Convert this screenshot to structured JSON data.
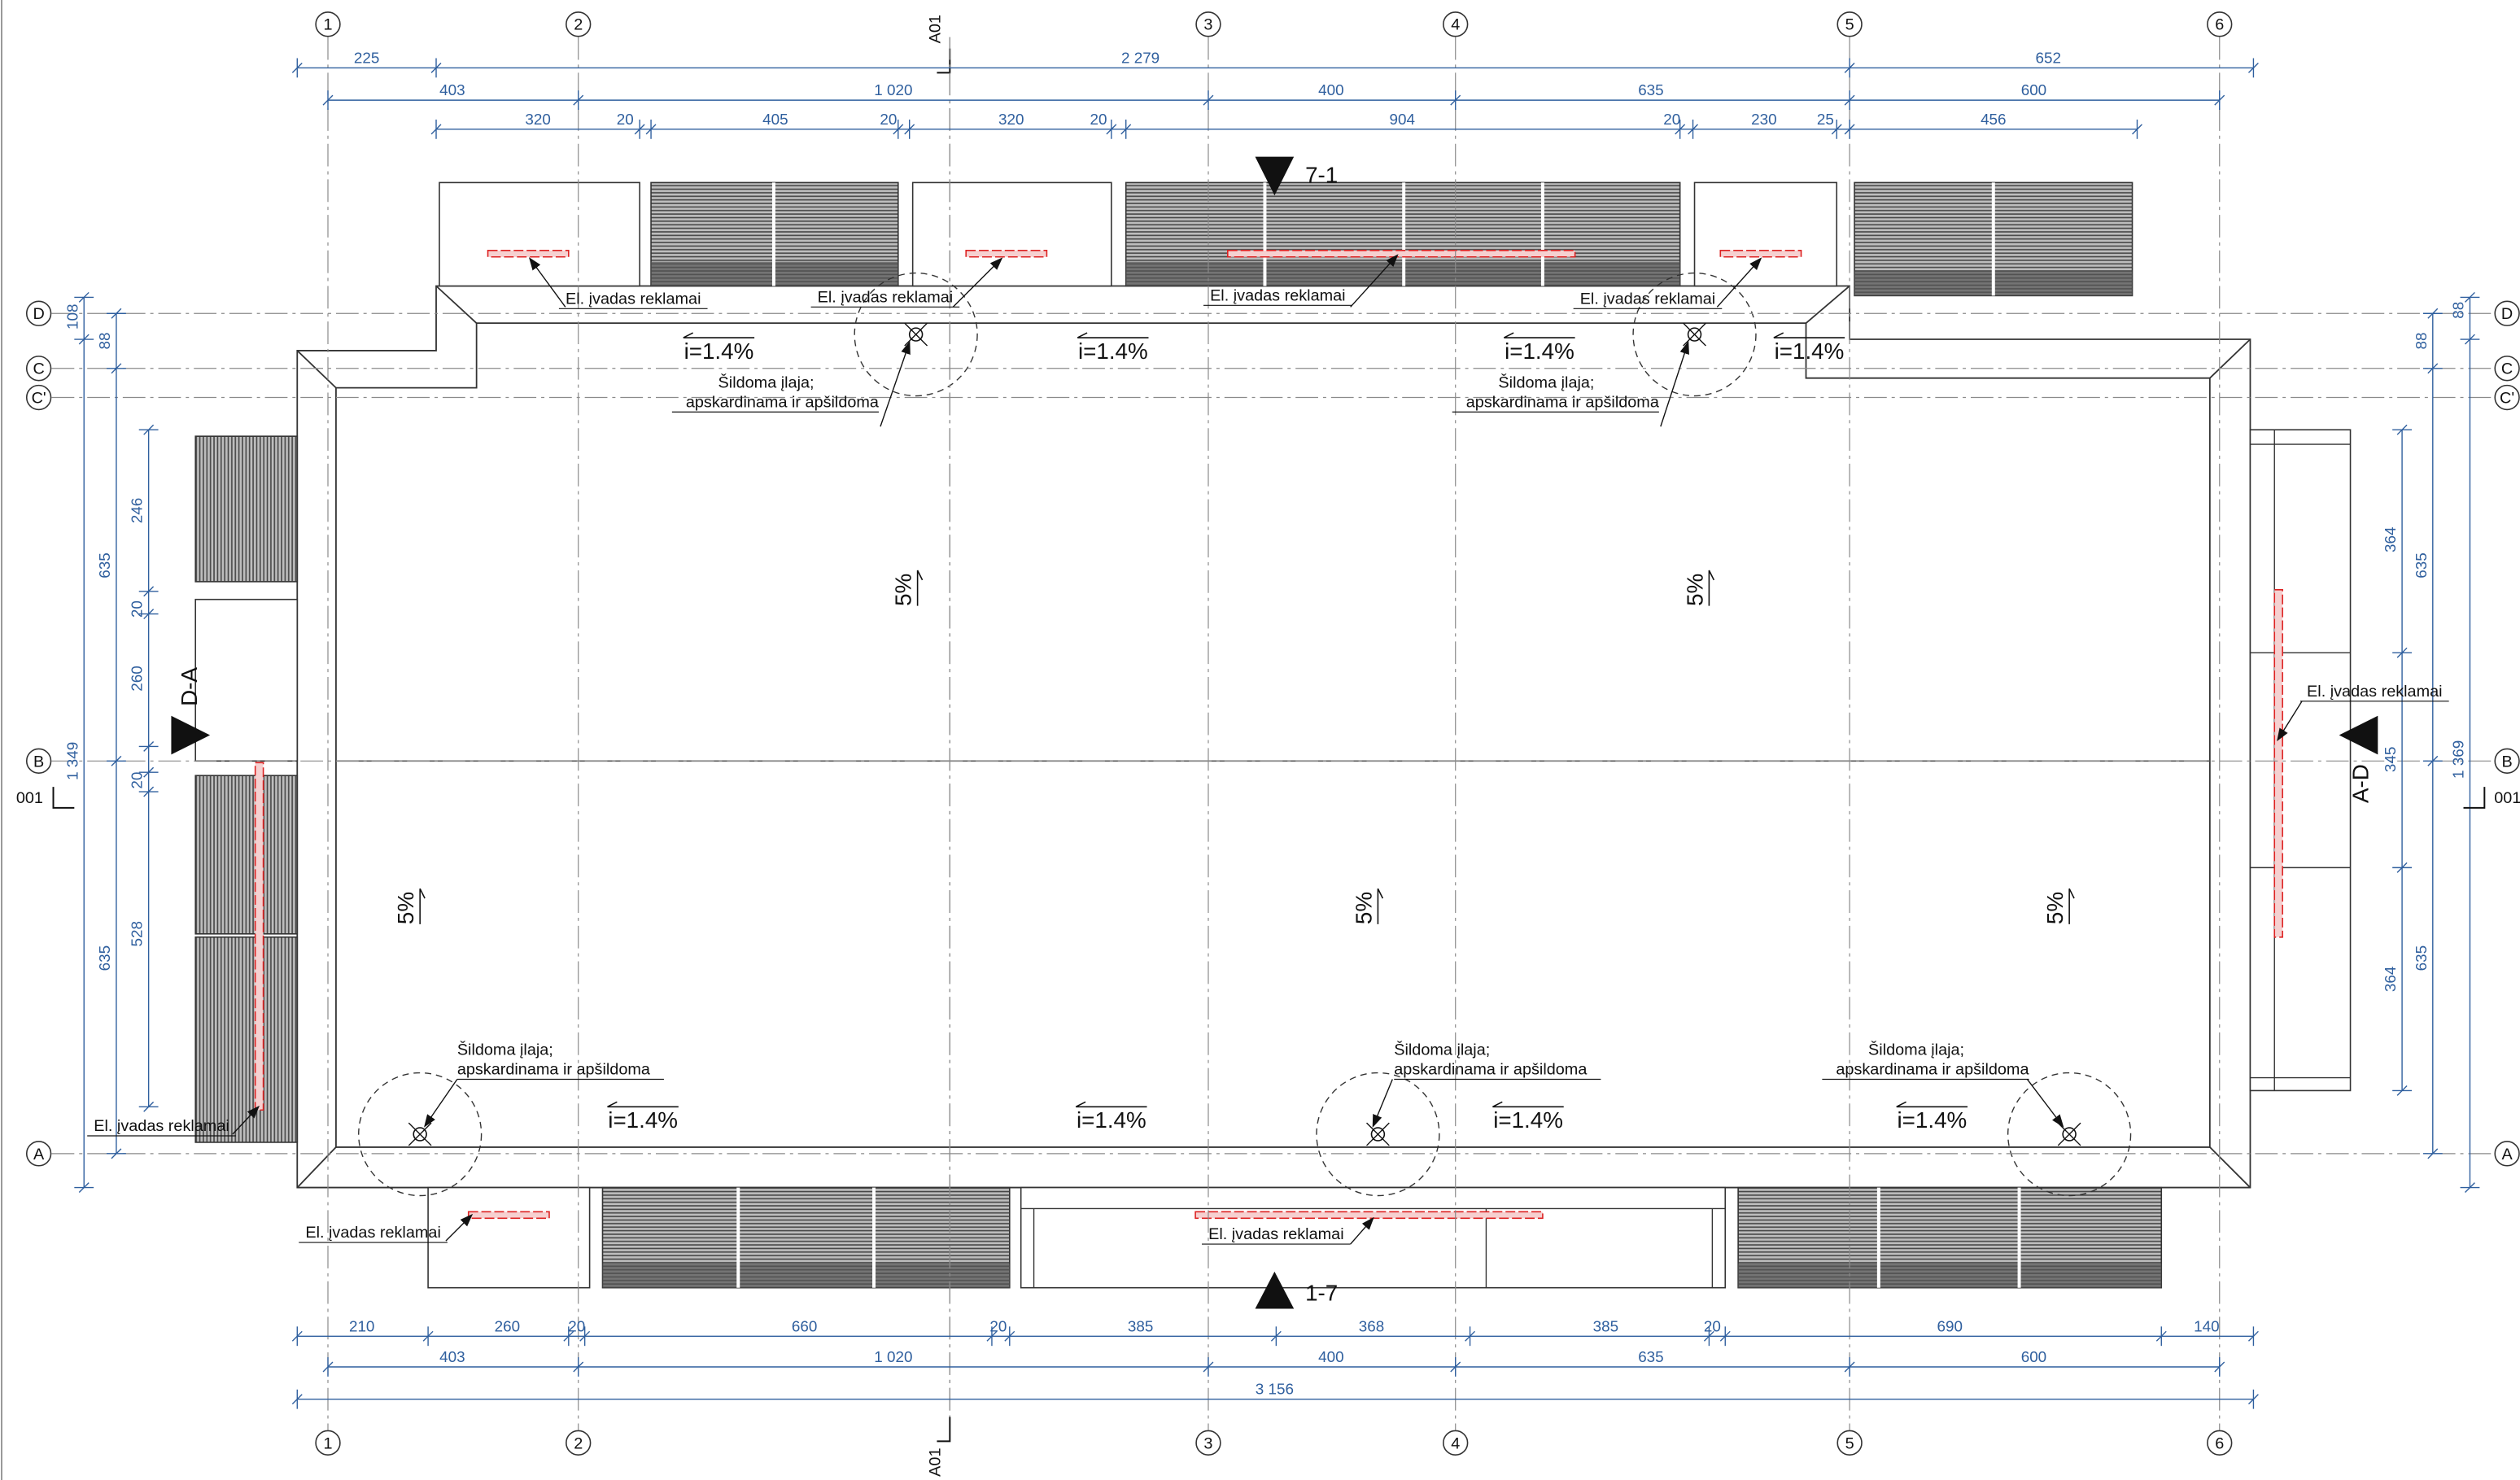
{
  "grid": {
    "columns": [
      "1",
      "2",
      "3",
      "4",
      "5",
      "6"
    ],
    "rows": [
      "D",
      "C",
      "C'",
      "B",
      "A"
    ],
    "section_refs": [
      "A01",
      "A01"
    ]
  },
  "dimensions": {
    "top": [
      [
        225,
        "2 279",
        652
      ],
      [
        403,
        "1 020",
        400,
        635,
        600
      ],
      [
        320,
        20,
        405,
        20,
        320,
        20,
        904,
        20,
        230,
        25,
        456
      ]
    ],
    "bottom": [
      [
        210,
        260,
        20,
        660,
        20,
        385,
        368,
        385,
        20,
        690,
        140
      ],
      [
        403,
        "1 020",
        400,
        635,
        600
      ],
      [
        "3 156"
      ]
    ],
    "left": [
      [
        108,
        "1 349"
      ],
      [
        88,
        635,
        635
      ],
      [
        246,
        20,
        260,
        20,
        528
      ]
    ],
    "right": [
      [
        88,
        "1 369"
      ],
      [
        88,
        635,
        635
      ],
      [
        364,
        345,
        364
      ]
    ]
  },
  "cable_entry_labels": [
    "El. įvadas reklamai",
    "El. įvadas reklamai",
    "El. įvadas reklamai",
    "El. įvadas reklamai",
    "El. įvadas reklamai",
    "El. įvadas reklamai",
    "El. įvadas reklamai",
    "El. įvadas reklamai"
  ],
  "drain_notes": [
    {
      "line1": "Šildoma įlaja;",
      "line2": "apskardinama ir apšildoma"
    },
    {
      "line1": "Šildoma įlaja;",
      "line2": "apskardinama ir apšildoma"
    },
    {
      "line1": "Šildoma įlaja;",
      "line2": "apskardinama ir apšildoma"
    },
    {
      "line1": "Šildoma įlaja;",
      "line2": "apskardinama ir apšildoma"
    },
    {
      "line1": "Šildoma įlaja;",
      "line2": "apskardinama ir apšildoma"
    }
  ],
  "gutter_slopes": [
    "i=1.4%",
    "i=1.4%",
    "i=1.4%",
    "i=1.4%",
    "i=1.4%",
    "i=1.4%",
    "i=1.4%",
    "i=1.4%"
  ],
  "roof_slopes": [
    "5%",
    "5%",
    "5%",
    "5%",
    "5%"
  ],
  "sections": [
    "7-1",
    "1-7",
    "D-A",
    "A-D"
  ],
  "sheet_refs": [
    "001",
    "001"
  ]
}
